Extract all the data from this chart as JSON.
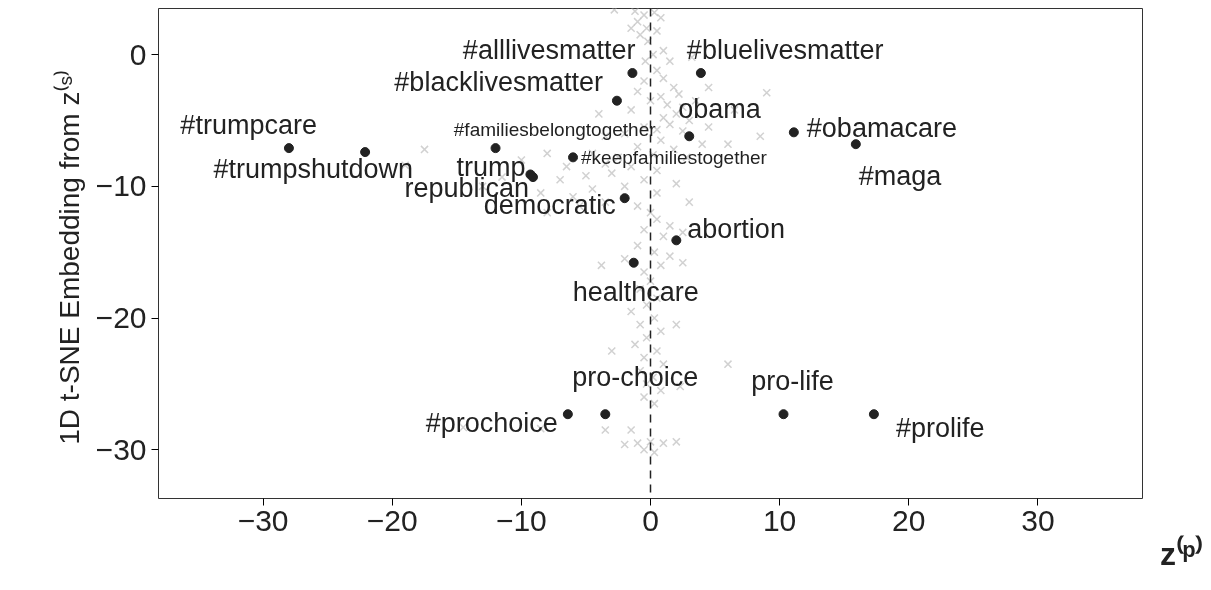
{
  "chart_data": {
    "type": "scatter",
    "xlabel": "z⁽ᵖ⁾",
    "ylabel": "1D t-SNE Embedding from  z⁽ˢ⁾",
    "xlim": [
      -38.1,
      38.1
    ],
    "ylim": [
      -33.7,
      3.5
    ],
    "xticks": [
      {
        "value": -30,
        "label": "−30"
      },
      {
        "value": -20,
        "label": "−20"
      },
      {
        "value": -10,
        "label": "−10"
      },
      0,
      10,
      20,
      30
    ],
    "yticks": [
      {
        "value": -30,
        "label": "−30"
      },
      {
        "value": -20,
        "label": "−20"
      },
      {
        "value": -10,
        "label": "−10"
      },
      0
    ],
    "grid": false,
    "ref_lines": [
      {
        "axis": "x",
        "value": 0,
        "color": "#222222",
        "line_style": "dashed"
      }
    ],
    "series": [
      {
        "marker": "cross",
        "color": "#bdbdbd",
        "x": [
          -1.2,
          -0.5,
          0.3,
          -2.8,
          -1.0,
          -0.3,
          0.8,
          -0.8,
          -0.2,
          0.5,
          -1.5,
          1.0,
          0.2,
          -0.4,
          1.5,
          3.2,
          0.5,
          1.0,
          -0.5,
          1.8,
          2.2,
          0.8,
          1.3,
          2.5,
          -1.0,
          0.0,
          3.5,
          4.5,
          2.0,
          1.0,
          -1.5,
          6.5,
          9.0,
          -4.0,
          3.0,
          1.5,
          0.5,
          -0.5,
          2.5,
          4.5,
          -2.0,
          -3.5,
          0.8,
          -1.0,
          1.8,
          4.0,
          6.0,
          8.5,
          -4.5,
          -6.5,
          -2.5,
          0.2,
          2.8,
          -3.5,
          -8.0,
          -10.0,
          -17.5,
          -19.0,
          -1.5,
          -5.0,
          -7.0,
          -3.0,
          0.5,
          -0.5,
          -2.0,
          -4.5,
          -6.0,
          -8.5,
          -11.5,
          -13.0,
          -3.5,
          0.5,
          2.0,
          -1.0,
          -5.5,
          -8.0,
          0.0,
          3.0,
          0.5,
          1.5,
          -0.5,
          1.0,
          2.5,
          -1.0,
          0.3,
          1.5,
          -2.0,
          0.8,
          2.5,
          -0.5,
          -3.8,
          0.0,
          -0.8,
          0.5,
          -0.3,
          -1.5,
          0.3,
          -0.8,
          0.8,
          -0.3,
          -1.2,
          0.5,
          -0.5,
          1.0,
          -0.8,
          0.2,
          -0.3,
          0.8,
          -0.5,
          0.3,
          6.0,
          2.3,
          -3.0,
          2.0,
          -3.5,
          -1.5,
          -1.0,
          0.0,
          1.0,
          -0.5,
          0.3,
          2.0,
          -2.0,
          -14.5,
          -8.5
        ],
        "values": [
          3.3,
          3.0,
          3.2,
          3.4,
          2.5,
          2.0,
          2.8,
          1.5,
          1.0,
          1.8,
          2.0,
          0.3,
          0.0,
          -0.5,
          -0.5,
          -0.2,
          -1.2,
          -1.8,
          -2.0,
          -2.5,
          -3.0,
          -3.2,
          -3.8,
          -4.0,
          -2.8,
          -3.5,
          -3.5,
          -2.5,
          -4.5,
          -4.8,
          -4.2,
          -4.2,
          -2.9,
          -4.5,
          -5.0,
          -5.3,
          -5.7,
          -5.5,
          -5.8,
          -5.5,
          -6.0,
          -6.2,
          -6.5,
          -7.0,
          -7.2,
          -6.8,
          -6.8,
          -6.2,
          -7.5,
          -8.5,
          -7.8,
          -7.6,
          -7.8,
          -8.3,
          -7.5,
          -8.0,
          -7.2,
          -8.4,
          -8.5,
          -9.2,
          -9.5,
          -9.0,
          -8.8,
          -9.5,
          -10.0,
          -10.2,
          -10.8,
          -10.5,
          -9.3,
          -10.0,
          -11.2,
          -10.5,
          -9.8,
          -11.5,
          -11.5,
          -12.0,
          -12.0,
          -11.2,
          -12.5,
          -13.0,
          -13.3,
          -13.8,
          -13.5,
          -14.5,
          -15.0,
          -15.3,
          -15.5,
          -16.0,
          -15.8,
          -16.5,
          -16.0,
          -17.2,
          -17.8,
          -18.5,
          -19.0,
          -19.5,
          -20.0,
          -20.5,
          -21.0,
          -21.5,
          -22.0,
          -22.5,
          -23.0,
          -23.5,
          -24.0,
          -24.5,
          -25.0,
          -25.5,
          -26.0,
          -26.5,
          -23.5,
          -25.2,
          -22.5,
          -20.5,
          -28.5,
          -28.5,
          -29.5,
          -29.4,
          -29.5,
          -30.0,
          -30.2,
          -29.4,
          -29.6,
          -28.3,
          -28.4
        ]
      },
      {
        "marker": "circle",
        "color": "#222222",
        "x": [
          -1.4,
          3.9,
          -2.6,
          -28.0,
          -22.1,
          -12.0,
          -6.0,
          3.0,
          11.1,
          15.9,
          -9.3,
          -9.1,
          -2.0,
          2.0,
          -1.3,
          -6.4,
          -3.5,
          10.3,
          17.3
        ],
        "values": [
          -1.4,
          -1.4,
          -3.5,
          -7.1,
          -7.4,
          -7.1,
          -7.8,
          -6.2,
          -5.9,
          -6.8,
          -9.1,
          -9.3,
          -10.9,
          -14.1,
          -15.8,
          -27.3,
          -27.3,
          -27.3,
          -27.3
        ]
      }
    ],
    "annotations": [
      {
        "text": "#alllivesmatter",
        "x": -1.4,
        "y": -1.4
      },
      {
        "text": "#bluelivesmatter",
        "x": 3.9,
        "y": -1.4
      },
      {
        "text": "#blacklivesmatter",
        "x": -2.6,
        "y": -3.5
      },
      {
        "text": "#trumpcare",
        "x": -28.0,
        "y": -7.1
      },
      {
        "text": "#trumpshutdown",
        "x": -22.1,
        "y": -7.4
      },
      {
        "text": "#familiesbelongtogether",
        "x": -12.0,
        "y": -7.1
      },
      {
        "text": "#keepfamiliestogether",
        "x": -6.0,
        "y": -7.8
      },
      {
        "text": "obama",
        "x": 3.0,
        "y": -6.2
      },
      {
        "text": "#obamacare",
        "x": 11.1,
        "y": -5.9
      },
      {
        "text": "#maga",
        "x": 15.9,
        "y": -6.8
      },
      {
        "text": "trump",
        "x": -9.3,
        "y": -9.1
      },
      {
        "text": "republican",
        "x": -9.1,
        "y": -9.3
      },
      {
        "text": "democratic",
        "x": -2.0,
        "y": -10.9
      },
      {
        "text": "abortion",
        "x": 2.0,
        "y": -14.1
      },
      {
        "text": "healthcare",
        "x": -1.3,
        "y": -15.8
      },
      {
        "text": "#prochoice",
        "x": -6.4,
        "y": -27.3
      },
      {
        "text": "pro-choice",
        "x": -3.5,
        "y": -27.3
      },
      {
        "text": "pro-life",
        "x": 10.3,
        "y": -27.3
      },
      {
        "text": "#prolife",
        "x": 17.3,
        "y": -27.3
      }
    ]
  }
}
